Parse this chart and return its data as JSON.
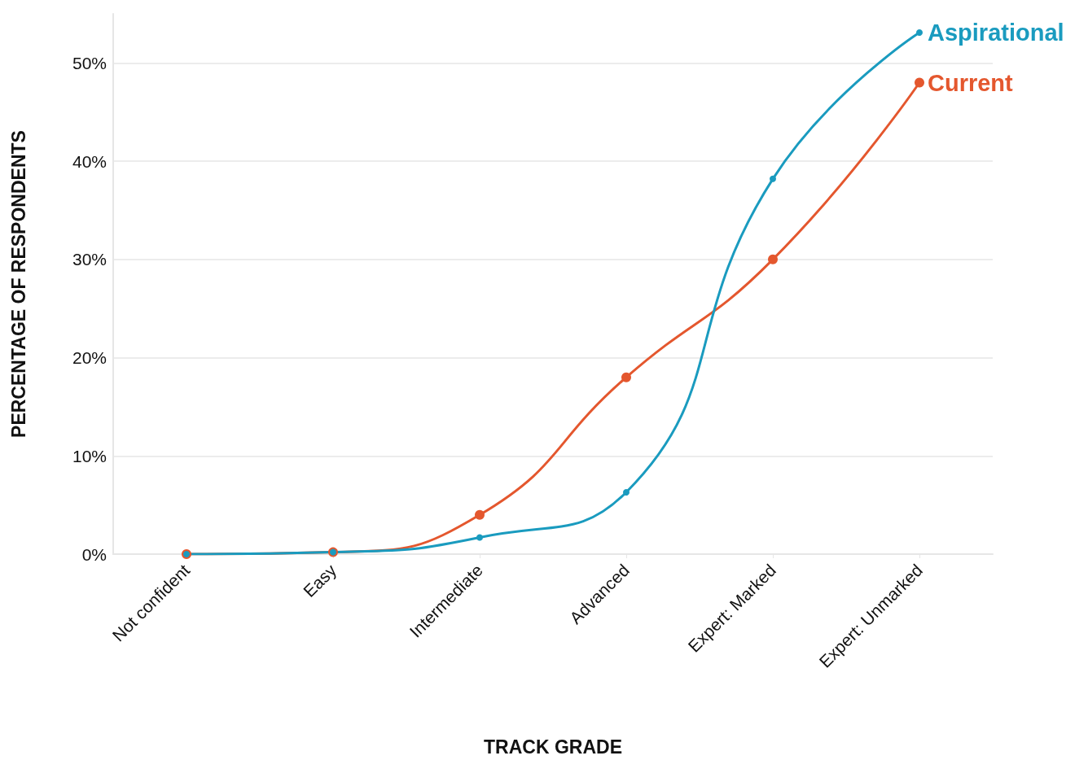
{
  "chart_data": {
    "type": "line",
    "xlabel": "TRACK GRADE",
    "ylabel": "PERCENTAGE OF RESPONDENTS",
    "categories": [
      "Not confident",
      "Easy",
      "Intermediate",
      "Advanced",
      "Expert: Marked",
      "Expert: Unmarked"
    ],
    "series": [
      {
        "name": "Current",
        "color": "#e4572e",
        "values": [
          0,
          0.2,
          4,
          18,
          30,
          48
        ]
      },
      {
        "name": "Aspirational",
        "color": "#1a9bbf",
        "values": [
          0,
          0.2,
          1.7,
          6.3,
          38.2,
          53.1
        ]
      }
    ],
    "ylim": [
      0,
      55
    ],
    "yticks": [
      {
        "value": 0,
        "label": "0%"
      },
      {
        "value": 10,
        "label": "10%"
      },
      {
        "value": 20,
        "label": "20%"
      },
      {
        "value": 30,
        "label": "30%"
      },
      {
        "value": 40,
        "label": "40%"
      },
      {
        "value": 50,
        "label": "50%"
      }
    ],
    "grid": "y",
    "legend": false,
    "marker": "circle",
    "line_style": "solid"
  }
}
